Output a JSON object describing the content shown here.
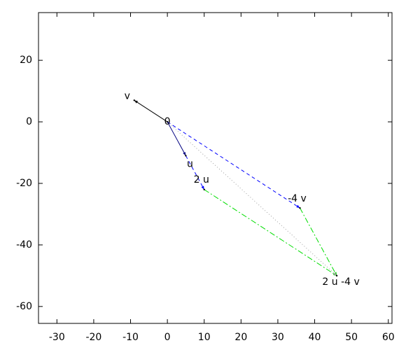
{
  "chart_data": {
    "type": "vector",
    "xlim": [
      -35,
      61
    ],
    "ylim": [
      -65.5,
      35.5
    ],
    "xticks": [
      -30,
      -20,
      -10,
      0,
      10,
      20,
      30,
      40,
      50,
      60
    ],
    "yticks": [
      -60,
      -40,
      -20,
      0,
      20
    ],
    "points": [
      {
        "label": "0",
        "x": 0,
        "y": 0
      },
      {
        "label": "v",
        "x": -9,
        "y": 7
      },
      {
        "label": "u",
        "x": 5,
        "y": -11
      },
      {
        "label": "2 u",
        "x": 10,
        "y": -22
      },
      {
        "label": "-4 v",
        "x": 36,
        "y": -28
      },
      {
        "label": "2 u -4 v",
        "x": 46,
        "y": -50
      }
    ],
    "series": [
      {
        "color": "#000000",
        "style": "solid",
        "x": [
          0,
          -9
        ],
        "y": [
          0,
          7
        ]
      },
      {
        "color": "#000080",
        "style": "solid",
        "x": [
          0,
          5
        ],
        "y": [
          0,
          -11
        ]
      },
      {
        "color": "#0000ff",
        "style": "dashed",
        "x": [
          5,
          10
        ],
        "y": [
          -11,
          -22
        ]
      },
      {
        "color": "#0000ff",
        "style": "dashed",
        "x": [
          0,
          36
        ],
        "y": [
          0,
          -28
        ]
      },
      {
        "color": "#00dd00",
        "style": "dash-dot",
        "x": [
          10,
          46
        ],
        "y": [
          -22,
          -50
        ]
      },
      {
        "color": "#00dd00",
        "style": "dash-dot",
        "x": [
          36,
          46
        ],
        "y": [
          -28,
          -50
        ]
      },
      {
        "color": "#a0a0a0",
        "style": "dotted",
        "x": [
          0,
          46
        ],
        "y": [
          0,
          -50
        ]
      }
    ]
  }
}
